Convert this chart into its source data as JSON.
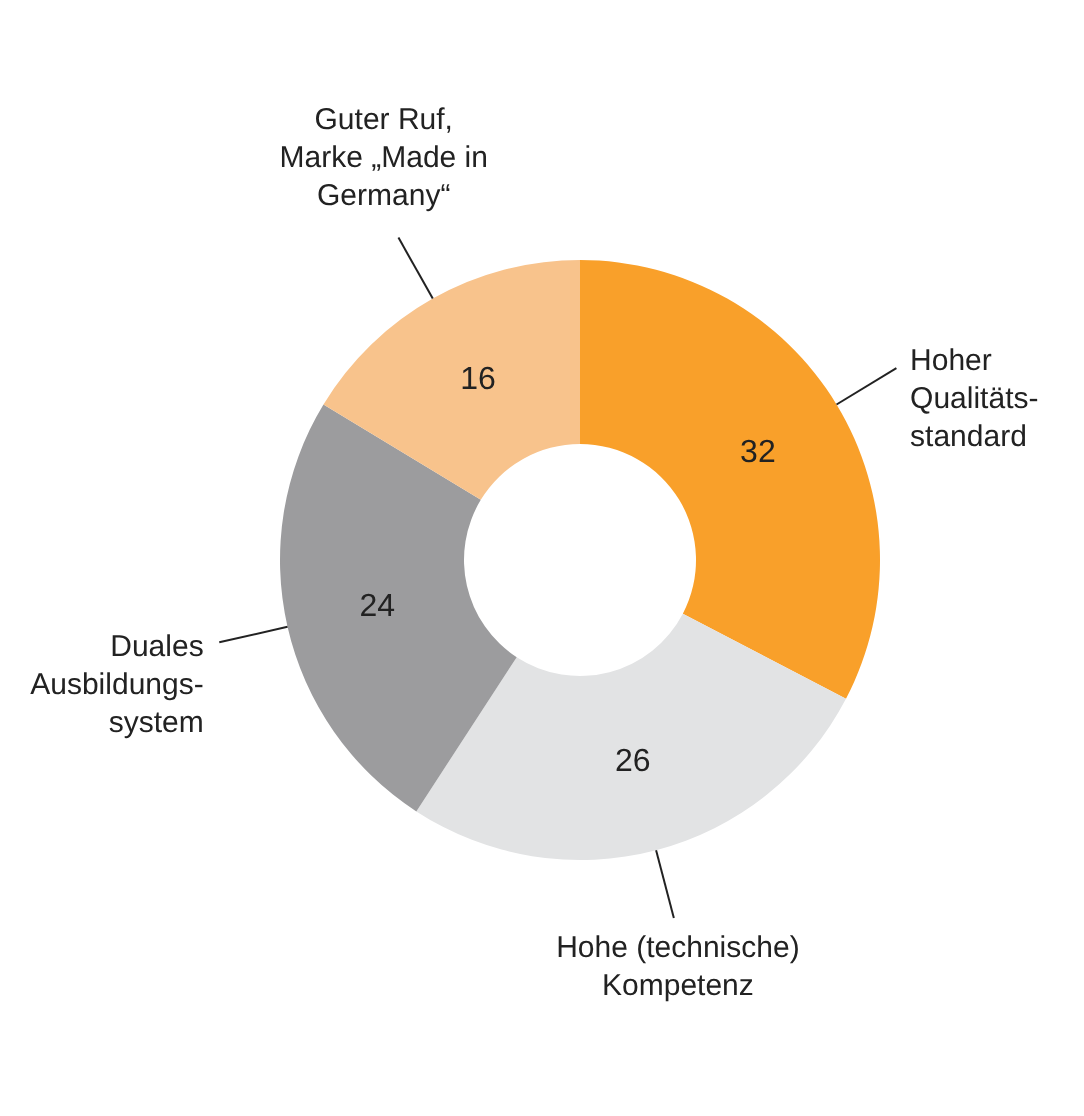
{
  "chart_data": {
    "type": "donut",
    "categories": [
      "Hoher\nQualitäts-\nstandard",
      "Hohe (technische)\nKompetenz",
      "Duales\nAusbildungs-\nsystem",
      "Guter Ruf,\nMarke „Made in\nGermany“"
    ],
    "values": [
      32,
      26,
      24,
      16
    ],
    "colors": [
      "#f9a02a",
      "#e2e3e4",
      "#9c9c9e",
      "#f8c38c"
    ],
    "data_labels": true
  }
}
